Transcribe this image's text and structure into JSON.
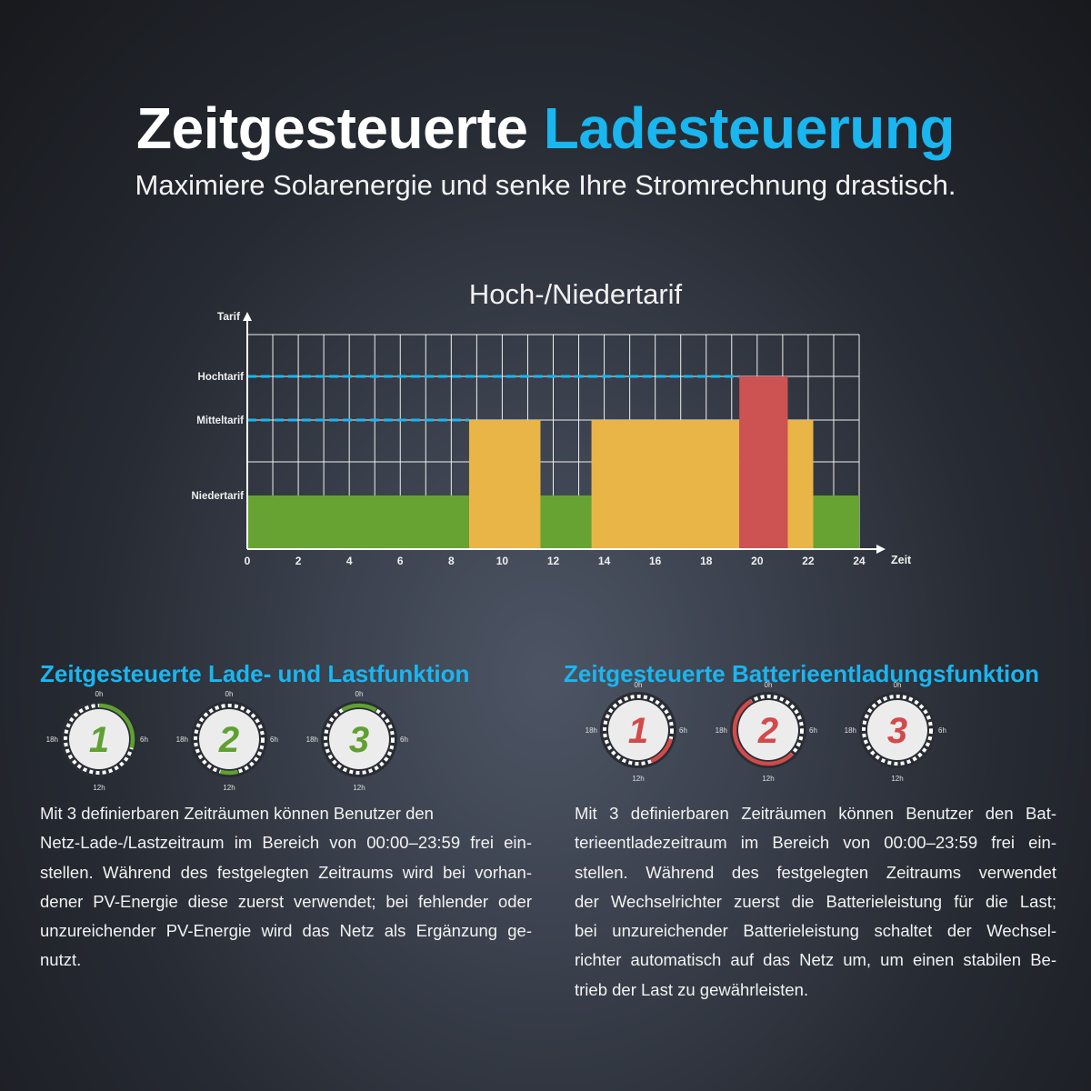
{
  "header": {
    "title_part1": "Zeitgesteuerte",
    "title_part2": "Ladesteuerung",
    "subtitle": "Maximiere Solarenergie und senke Ihre Stromrechnung drastisch."
  },
  "colors": {
    "accent": "#19b6f0",
    "green": "#67a332",
    "orange": "#eab547",
    "red": "#cd5252",
    "clock_green": "#5fa131",
    "clock_red": "#d24a4a"
  },
  "chart_data": {
    "type": "bar",
    "title": "Hoch-/Niedertarif",
    "xlabel": "Zeit",
    "ylabel": "Tarif",
    "xlim": [
      0,
      24
    ],
    "x_ticks": [
      "0",
      "2",
      "4",
      "6",
      "8",
      "10",
      "12",
      "14",
      "16",
      "18",
      "20",
      "22",
      "24"
    ],
    "y_levels": [
      {
        "label": "Niedertarif",
        "value": 1
      },
      {
        "label": "Mitteltarif",
        "value": 2
      },
      {
        "label": "Hochtarif",
        "value": 3
      }
    ],
    "segments": [
      {
        "start": 0,
        "end": 8.7,
        "level": "Niedertarif",
        "color": "#67a332"
      },
      {
        "start": 8.7,
        "end": 11.5,
        "level": "Mitteltarif",
        "color": "#eab547"
      },
      {
        "start": 11.5,
        "end": 13.5,
        "level": "Niedertarif",
        "color": "#67a332"
      },
      {
        "start": 13.5,
        "end": 19.3,
        "level": "Mitteltarif",
        "color": "#eab547"
      },
      {
        "start": 19.3,
        "end": 21.2,
        "level": "Hochtarif",
        "color": "#cd5252"
      },
      {
        "start": 21.2,
        "end": 22.2,
        "level": "Mitteltarif",
        "color": "#eab547"
      },
      {
        "start": 22.2,
        "end": 24,
        "level": "Niedertarif",
        "color": "#67a332"
      }
    ],
    "grid": true,
    "dashed_reference_lines": [
      "Hochtarif",
      "Mitteltarif"
    ]
  },
  "sections": {
    "left": {
      "heading": "Zeitgesteuerte Lade- und Lastfunktion",
      "paragraph_lines": [
        "Mit 3 definierbaren Zeiträumen können Benutzer den",
        "Netz-Lade-/Lastzeitraum im Bereich von 00:00–23:59 frei ein-",
        "stellen. Während des festgelegten Zeitraums wird bei vorhan-",
        "dener PV-Energie diese zuerst verwendet; bei fehlender oder",
        "unzureichender PV-Energie wird das Netz als Ergänzung ge-",
        "nutzt."
      ]
    },
    "right": {
      "heading": "Zeitgesteuerte Batterieentladungsfunktion",
      "paragraph_lines": [
        "Mit 3 definierbaren Zeiträumen können Benutzer den Bat-",
        "terieentladezeitraum im Bereich von 00:00–23:59 frei ein-",
        "stellen. Während des festgelegten Zeitraums verwendet",
        "der Wechselrichter zuerst die Batterieleistung für die Last;",
        "bei unzureichender Batterieleistung schaltet der Wechsel-",
        "richter automatisch auf das Netz um, um einen stabilen Be-",
        "trieb der Last zu gewährleisten."
      ]
    }
  },
  "clock_labels": {
    "top": "0h",
    "right": "6h",
    "bottom": "12h",
    "left": "18h"
  },
  "clocks_left": [
    {
      "number": "1",
      "color": "#5fa131",
      "arc_start_h": 0,
      "arc_end_h": 7
    },
    {
      "number": "2",
      "color": "#5fa131",
      "arc_start_h": 11,
      "arc_end_h": 13
    },
    {
      "number": "3",
      "color": "#5fa131",
      "arc_start_h": 22,
      "arc_end_h": 2
    }
  ],
  "clocks_right": [
    {
      "number": "1",
      "color": "#d24a4a",
      "arc_start_h": 7,
      "arc_end_h": 10.5
    },
    {
      "number": "2",
      "color": "#d24a4a",
      "arc_start_h": 9,
      "arc_end_h": 22
    },
    {
      "number": "3",
      "color": "#d24a4a",
      "arc_start_h": null,
      "arc_end_h": null
    }
  ]
}
